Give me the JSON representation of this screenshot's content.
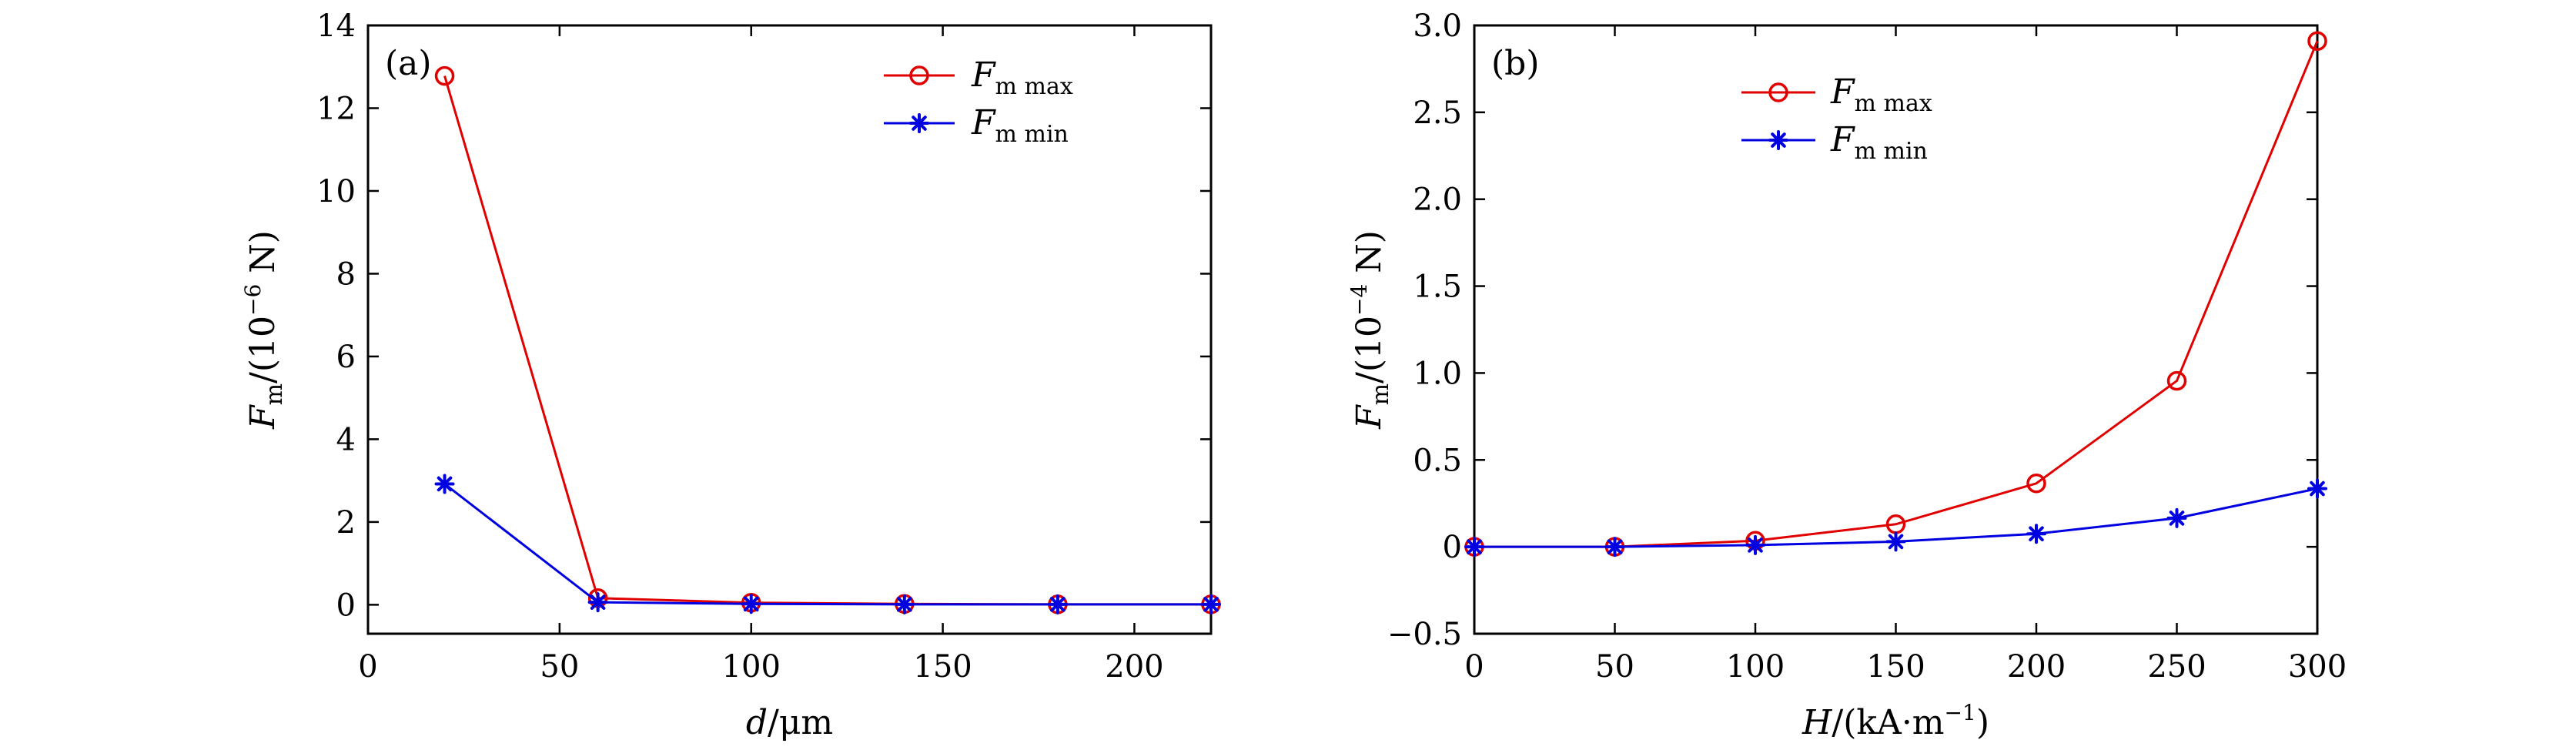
{
  "chart_data": [
    {
      "type": "line",
      "panel_label": "(a)",
      "xlabel": "d/μm",
      "ylabel": "F_m/(10^-6 N)",
      "xlim": [
        0,
        220
      ],
      "ylim": [
        -0.7,
        14
      ],
      "xticks": [
        0,
        50,
        100,
        150,
        200
      ],
      "xtick_labels": [
        "0",
        "50",
        "100",
        "150",
        "200"
      ],
      "yticks": [
        0,
        2,
        4,
        6,
        8,
        10,
        12,
        14
      ],
      "ytick_labels": [
        "0",
        "2",
        "4",
        "6",
        "8",
        "10",
        "12",
        "14"
      ],
      "legend_position": "top-right",
      "x": [
        20,
        60,
        100,
        140,
        180,
        220
      ],
      "series": [
        {
          "name": "Fm max",
          "sub": "m max",
          "color": "#e00000",
          "marker": "circle",
          "values": [
            12.78,
            0.16,
            0.05,
            0.02,
            0.01,
            0.01
          ]
        },
        {
          "name": "Fm min",
          "sub": "m min",
          "color": "#0000e0",
          "marker": "star",
          "values": [
            2.92,
            0.06,
            0.02,
            0.01,
            0.01,
            0.01
          ]
        }
      ]
    },
    {
      "type": "line",
      "panel_label": "(b)",
      "xlabel": "H/(kA·m^-1)",
      "ylabel": "F_m/(10^-4 N)",
      "xlim": [
        0,
        300
      ],
      "ylim": [
        -0.5,
        3.0
      ],
      "xticks": [
        0,
        50,
        100,
        150,
        200,
        250,
        300
      ],
      "xtick_labels": [
        "0",
        "50",
        "100",
        "150",
        "200",
        "250",
        "300"
      ],
      "yticks": [
        -0.5,
        0,
        0.5,
        1.0,
        1.5,
        2.0,
        2.5,
        3.0
      ],
      "ytick_labels": [
        "−0.5",
        "0",
        "0.5",
        "1.0",
        "1.5",
        "2.0",
        "2.5",
        "3.0"
      ],
      "legend_position": "top-left",
      "x": [
        0,
        50,
        100,
        150,
        200,
        250,
        300
      ],
      "series": [
        {
          "name": "Fm max",
          "sub": "m max",
          "color": "#e00000",
          "marker": "circle",
          "values": [
            0,
            0,
            0.035,
            0.13,
            0.365,
            0.955,
            2.91
          ]
        },
        {
          "name": "Fm min",
          "sub": "m min",
          "color": "#0000e0",
          "marker": "star",
          "values": [
            0,
            0,
            0.01,
            0.03,
            0.075,
            0.165,
            0.335
          ]
        }
      ]
    }
  ]
}
